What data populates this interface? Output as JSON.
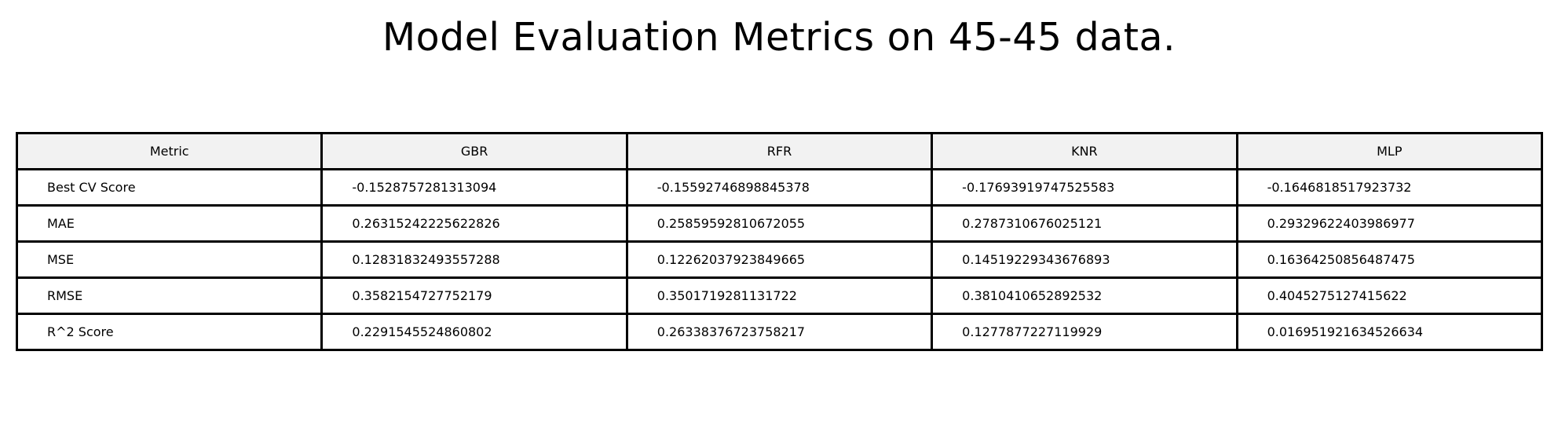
{
  "chart_data": {
    "type": "table",
    "title": "Model Evaluation Metrics on 45-45 data.",
    "columns": [
      "Metric",
      "GBR",
      "RFR",
      "KNR",
      "MLP"
    ],
    "rows": [
      [
        "Best CV Score",
        "-0.1528757281313094",
        "-0.15592746898845378",
        "-0.17693919747525583",
        "-0.1646818517923732"
      ],
      [
        "MAE",
        "0.26315242225622826",
        "0.25859592810672055",
        "0.2787310676025121",
        "0.29329622403986977"
      ],
      [
        "MSE",
        "0.12831832493557288",
        "0.12262037923849665",
        "0.14519229343676893",
        "0.16364250856487475"
      ],
      [
        "RMSE",
        "0.3582154727752179",
        "0.3501719281131722",
        "0.3810410652892532",
        "0.4045275127415622"
      ],
      [
        "R^2 Score",
        "0.2291545524860802",
        "0.26338376723758217",
        "0.1277877227119929",
        "0.016951921634526634"
      ]
    ]
  },
  "colors": {
    "header_background": "#f2f2f2",
    "border": "#000000"
  }
}
